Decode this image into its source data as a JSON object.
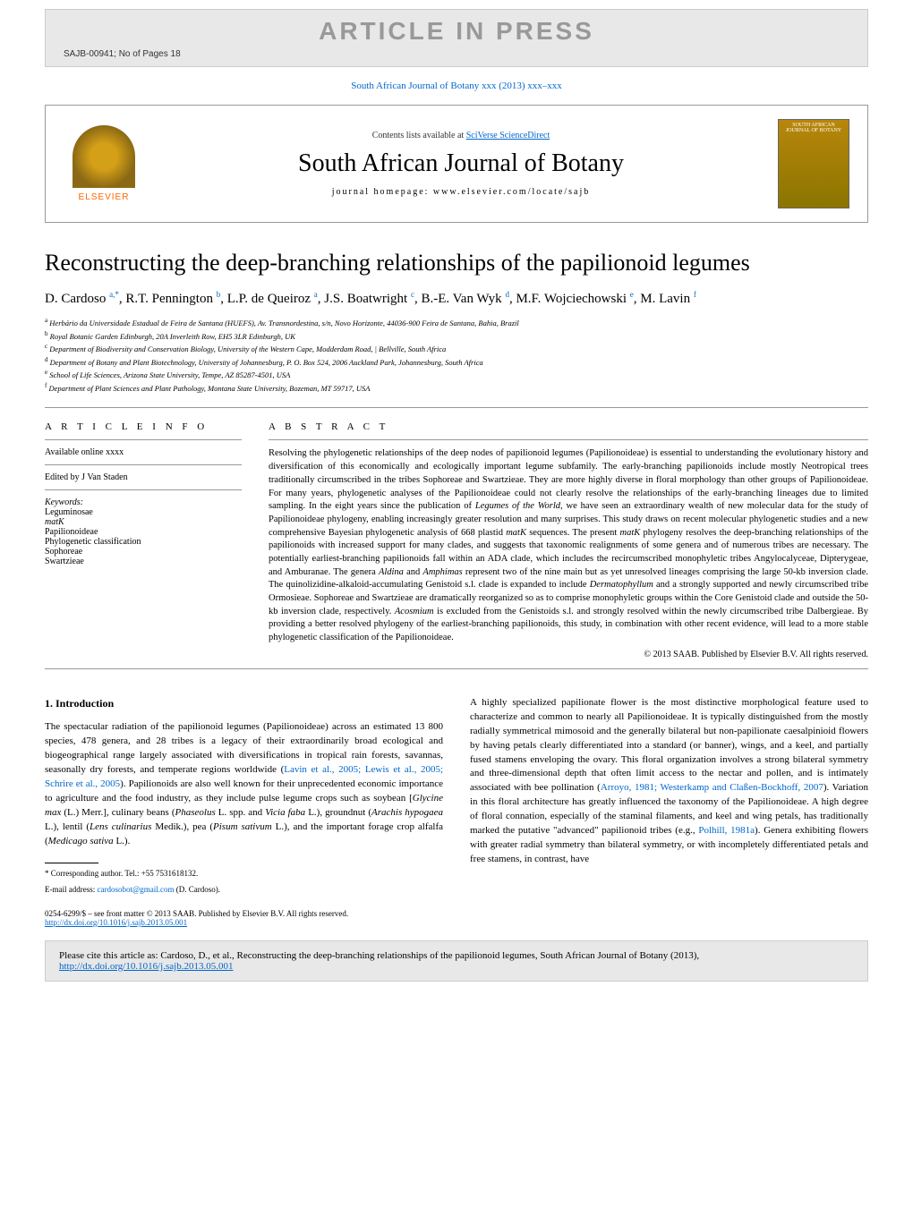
{
  "pressBanner": {
    "title": "ARTICLE IN PRESS",
    "sub": "SAJB-00941; No of Pages 18"
  },
  "citationTop": "South African Journal of Botany xxx (2013) xxx–xxx",
  "header": {
    "contentsPrefix": "Contents lists available at ",
    "contentsLink": "SciVerse ScienceDirect",
    "journalName": "South African Journal of Botany",
    "homepage": "journal homepage: www.elsevier.com/locate/sajb",
    "elsevier": "ELSEVIER",
    "coverText": "SOUTH AFRICAN JOURNAL OF BOTANY"
  },
  "article": {
    "title": "Reconstructing the deep-branching relationships of the papilionoid legumes",
    "authorsHtml": "D. Cardoso <sup>a,*</sup>, R.T. Pennington <sup>b</sup>, L.P. de Queiroz <sup>a</sup>, J.S. Boatwright <sup>c</sup>, B.-E. Van Wyk <sup>d</sup>, M.F. Wojciechowski <sup>e</sup>, M. Lavin <sup>f</sup>",
    "affiliations": [
      "a Herbário da Universidade Estadual de Feira de Santana (HUEFS), Av. Transnordestina, s/n, Novo Horizonte, 44036-900 Feira de Santana, Bahia, Brazil",
      "b Royal Botanic Garden Edinburgh, 20A Inverleith Row, EH5 3LR Edinburgh, UK",
      "c Department of Biodiversity and Conservation Biology, University of the Western Cape, Modderdam Road, | Bellville, South Africa",
      "d Department of Botany and Plant Biotechnology, University of Johannesburg, P. O. Box 524, 2006 Auckland Park, Johannesburg, South Africa",
      "e School of Life Sciences, Arizona State University, Tempe, AZ 85287-4501, USA",
      "f Department of Plant Sciences and Plant Pathology, Montana State University, Bozeman, MT 59717, USA"
    ]
  },
  "info": {
    "heading": "A R T I C L E   I N F O",
    "available": "Available online xxxx",
    "edited": "Edited by J Van Staden",
    "keywordsLabel": "Keywords:",
    "keywords": [
      "Leguminosae",
      "matK",
      "Papilionoideae",
      "Phylogenetic classification",
      "Sophoreae",
      "Swartzieae"
    ]
  },
  "abstract": {
    "heading": "A B S T R A C T",
    "text": "Resolving the phylogenetic relationships of the deep nodes of papilionoid legumes (Papilionoideae) is essential to understanding the evolutionary history and diversification of this economically and ecologically important legume subfamily. The early-branching papilionoids include mostly Neotropical trees traditionally circumscribed in the tribes Sophoreae and Swartzieae. They are more highly diverse in floral morphology than other groups of Papilionoideae. For many years, phylogenetic analyses of the Papilionoideae could not clearly resolve the relationships of the early-branching lineages due to limited sampling. In the eight years since the publication of Legumes of the World, we have seen an extraordinary wealth of new molecular data for the study of Papilionoideae phylogeny, enabling increasingly greater resolution and many surprises. This study draws on recent molecular phylogenetic studies and a new comprehensive Bayesian phylogenetic analysis of 668 plastid matK sequences. The present matK phylogeny resolves the deep-branching relationships of the papilionoids with increased support for many clades, and suggests that taxonomic realignments of some genera and of numerous tribes are necessary. The potentially earliest-branching papilionoids fall within an ADA clade, which includes the recircumscribed monophyletic tribes Angylocalyceae, Dipterygeae, and Amburanae. The genera Aldina and Amphimas represent two of the nine main but as yet unresolved lineages comprising the large 50-kb inversion clade. The quinolizidine-alkaloid-accumulating Genistoid s.l. clade is expanded to include Dermatophyllum and a strongly supported and newly circumscribed tribe Ormosieae. Sophoreae and Swartzieae are dramatically reorganized so as to comprise monophyletic groups within the Core Genistoid clade and outside the 50-kb inversion clade, respectively. Acosmium is excluded from the Genistoids s.l. and strongly resolved within the newly circumscribed tribe Dalbergieae. By providing a better resolved phylogeny of the earliest-branching papilionoids, this study, in combination with other recent evidence, will lead to a more stable phylogenetic classification of the Papilionoideae.",
    "copyright": "© 2013 SAAB. Published by Elsevier B.V. All rights reserved."
  },
  "intro": {
    "heading": "1. Introduction",
    "col1": "The spectacular radiation of the papilionoid legumes (Papilionoideae) across an estimated 13 800 species, 478 genera, and 28 tribes is a legacy of their extraordinarily broad ecological and biogeographical range largely associated with diversifications in tropical rain forests, savannas, seasonally dry forests, and temperate regions worldwide (Lavin et al., 2005; Lewis et al., 2005; Schrire et al., 2005). Papilionoids are also well known for their unprecedented economic importance to agriculture and the food industry, as they include pulse legume crops such as soybean [Glycine max (L.) Merr.], culinary beans (Phaseolus L. spp. and Vicia faba L.), groundnut (Arachis hypogaea L.), lentil (Lens culinarius Medik.), pea (Pisum sativum L.), and the important forage crop alfalfa (Medicago sativa L.).",
    "col2": "A highly specialized papilionate flower is the most distinctive morphological feature used to characterize and common to nearly all Papilionoideae. It is typically distinguished from the mostly radially symmetrical mimosoid and the generally bilateral but non-papilionate caesalpinioid flowers by having petals clearly differentiated into a standard (or banner), wings, and a keel, and partially fused stamens enveloping the ovary. This floral organization involves a strong bilateral symmetry and three-dimensional depth that often limit access to the nectar and pollen, and is intimately associated with bee pollination (Arroyo, 1981; Westerkamp and Claßen-Bockhoff, 2007). Variation in this floral architecture has greatly influenced the taxonomy of the Papilionoideae. A high degree of floral connation, especially of the staminal filaments, and keel and wing petals, has traditionally marked the putative \"advanced\" papilionoid tribes (e.g., Polhill, 1981a). Genera exhibiting flowers with greater radial symmetry than bilateral symmetry, or with incompletely differentiated petals and free stamens, in contrast, have"
  },
  "footnote": {
    "corresponding": "* Corresponding author. Tel.: +55 7531618132.",
    "emailLabel": "E-mail address: ",
    "email": "cardosobot@gmail.com",
    "emailSuffix": " (D. Cardoso)."
  },
  "footer": {
    "meta": "0254-6299/$ – see front matter © 2013 SAAB. Published by Elsevier B.V. All rights reserved.",
    "doi": "http://dx.doi.org/10.1016/j.sajb.2013.05.001"
  },
  "citeBox": {
    "text": "Please cite this article as: Cardoso, D., et al., Reconstructing the deep-branching relationships of the papilionoid legumes, South African Journal of Botany (2013), ",
    "link": "http://dx.doi.org/10.1016/j.sajb.2013.05.001"
  }
}
